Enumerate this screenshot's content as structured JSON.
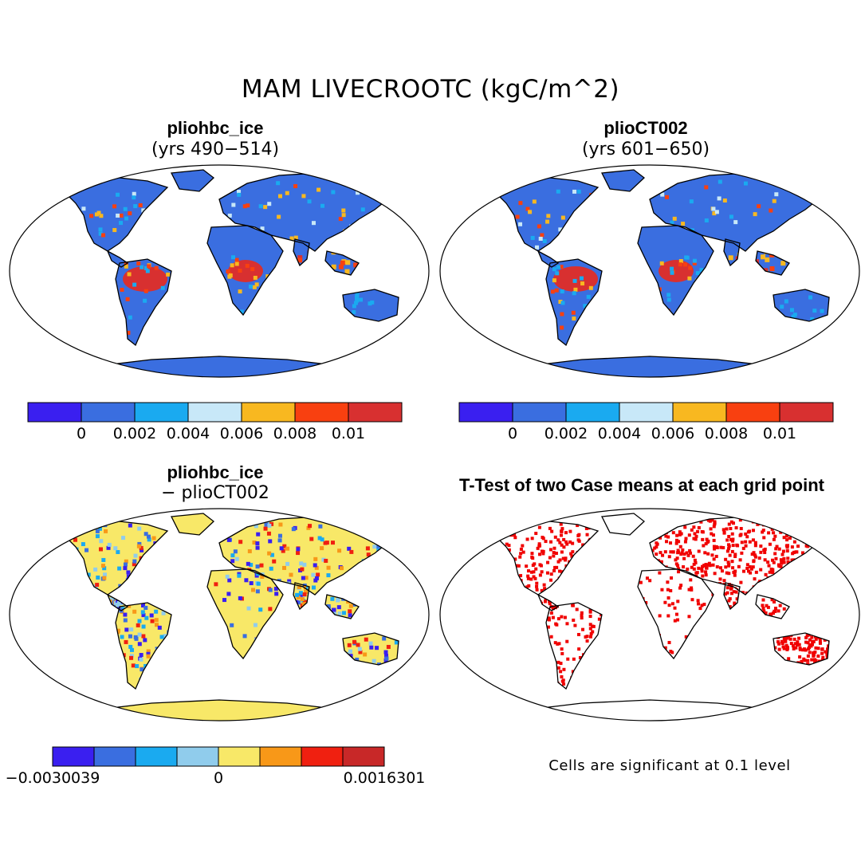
{
  "title": "MAM LIVECROOTC (kgC/m^2)",
  "panels": [
    {
      "title": "pliohbc_ice",
      "subtitle": "(yrs 490−514)"
    },
    {
      "title": "plioCT002",
      "subtitle": "(yrs 601−650)"
    },
    {
      "title": "pliohbc_ice",
      "subtitle": "− plioCT002"
    },
    {
      "title": "T-Test of two Case means at each grid point",
      "subtitle": ""
    }
  ],
  "colorbar_abs": {
    "colors": [
      "#3a1ff0",
      "#3a6ee0",
      "#1aaaf0",
      "#c8e8f8",
      "#f8b820",
      "#f84010",
      "#d83030"
    ],
    "ticks": [
      "0",
      "0.002",
      "0.004",
      "0.006",
      "0.008",
      "0.01"
    ]
  },
  "colorbar_diff": {
    "colors": [
      "#3a1ff0",
      "#3a6ee0",
      "#1aaaf0",
      "#90ccec",
      "#f8e868",
      "#f89818",
      "#f02010",
      "#c82828"
    ],
    "ticks": [
      "−0.0030039",
      "0",
      "0.0016301"
    ]
  },
  "note": "Cells are significant at 0.1 level",
  "map_colors": {
    "ocean": "#ffffff",
    "land_abs": "#3a6ee0",
    "land_diff": "#f8e868",
    "signif": "#f00000",
    "coast": "#000000"
  }
}
